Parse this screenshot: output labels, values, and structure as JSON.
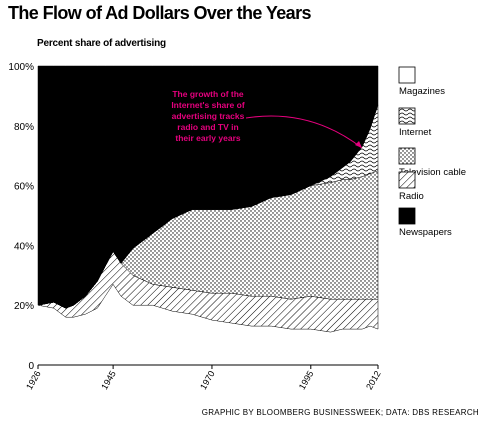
{
  "title": "The Flow of Ad Dollars Over the Years",
  "credit": "GRAPHIC BY BLOOMBERG BUSINESSWEEK; DATA: DBS RESEARCH",
  "chart_data": {
    "type": "area",
    "stacked": true,
    "title": "The Flow of Ad Dollars Over the Years",
    "ylabel": "Percent share of advertising",
    "xlabel": "",
    "ylim": [
      0,
      100
    ],
    "yticks": [
      "0",
      "20%",
      "40%",
      "60%",
      "80%",
      "100%"
    ],
    "xticks": [
      "1926",
      "1945",
      "1970",
      "1995",
      "2012"
    ],
    "grid": false,
    "legend_position": "right",
    "annotation": "The growth of the Internet's share of advertising tracks radio and TV in their early years",
    "colors": {
      "annotation": "#e6007e",
      "newspapers": "#000000"
    },
    "series": [
      {
        "name": "Magazines",
        "pattern": "white",
        "points": [
          [
            1926,
            20
          ],
          [
            1930,
            19
          ],
          [
            1933,
            16
          ],
          [
            1935,
            16
          ],
          [
            1938,
            17
          ],
          [
            1941,
            19
          ],
          [
            1943,
            23
          ],
          [
            1945,
            27
          ],
          [
            1947,
            23
          ],
          [
            1950,
            20
          ],
          [
            1955,
            20
          ],
          [
            1960,
            18
          ],
          [
            1965,
            17
          ],
          [
            1970,
            15
          ],
          [
            1975,
            14
          ],
          [
            1980,
            13
          ],
          [
            1985,
            13
          ],
          [
            1990,
            12
          ],
          [
            1995,
            12
          ],
          [
            2000,
            11
          ],
          [
            2003,
            12
          ],
          [
            2005,
            12
          ],
          [
            2008,
            12
          ],
          [
            2010,
            13
          ],
          [
            2012,
            12
          ]
        ]
      },
      {
        "name": "Radio",
        "pattern": "diagonal",
        "points": [
          [
            1926,
            0
          ],
          [
            1930,
            2
          ],
          [
            1933,
            3
          ],
          [
            1935,
            4
          ],
          [
            1938,
            6
          ],
          [
            1941,
            9
          ],
          [
            1943,
            10
          ],
          [
            1945,
            11
          ],
          [
            1947,
            11
          ],
          [
            1950,
            10
          ],
          [
            1955,
            7
          ],
          [
            1960,
            8
          ],
          [
            1965,
            8
          ],
          [
            1970,
            9
          ],
          [
            1975,
            10
          ],
          [
            1980,
            10
          ],
          [
            1985,
            10
          ],
          [
            1990,
            10
          ],
          [
            1995,
            11
          ],
          [
            2000,
            11
          ],
          [
            2003,
            10
          ],
          [
            2005,
            10
          ],
          [
            2008,
            10
          ],
          [
            2010,
            9
          ],
          [
            2012,
            10
          ]
        ]
      },
      {
        "name": "Television cable",
        "pattern": "dots",
        "points": [
          [
            1926,
            0
          ],
          [
            1930,
            0
          ],
          [
            1933,
            0
          ],
          [
            1935,
            0
          ],
          [
            1938,
            0
          ],
          [
            1941,
            0
          ],
          [
            1943,
            0
          ],
          [
            1945,
            0
          ],
          [
            1947,
            0
          ],
          [
            1950,
            9
          ],
          [
            1955,
            17
          ],
          [
            1960,
            23
          ],
          [
            1965,
            27
          ],
          [
            1970,
            28
          ],
          [
            1975,
            28
          ],
          [
            1980,
            30
          ],
          [
            1985,
            33
          ],
          [
            1990,
            35
          ],
          [
            1995,
            37
          ],
          [
            2000,
            39
          ],
          [
            2003,
            40
          ],
          [
            2005,
            40
          ],
          [
            2008,
            41
          ],
          [
            2010,
            42
          ],
          [
            2012,
            43
          ]
        ]
      },
      {
        "name": "Internet",
        "pattern": "wavy",
        "points": [
          [
            1926,
            0
          ],
          [
            1930,
            0
          ],
          [
            1933,
            0
          ],
          [
            1935,
            0
          ],
          [
            1938,
            0
          ],
          [
            1941,
            0
          ],
          [
            1943,
            0
          ],
          [
            1945,
            0
          ],
          [
            1947,
            0
          ],
          [
            1950,
            0
          ],
          [
            1955,
            0
          ],
          [
            1960,
            0
          ],
          [
            1965,
            0
          ],
          [
            1970,
            0
          ],
          [
            1975,
            0
          ],
          [
            1980,
            0
          ],
          [
            1985,
            0
          ],
          [
            1990,
            0
          ],
          [
            1995,
            0
          ],
          [
            2000,
            2
          ],
          [
            2003,
            4
          ],
          [
            2005,
            6
          ],
          [
            2008,
            10
          ],
          [
            2010,
            15
          ],
          [
            2012,
            22
          ]
        ]
      },
      {
        "name": "Newspapers",
        "pattern": "black",
        "points": [
          [
            1926,
            80
          ],
          [
            1930,
            79
          ],
          [
            1933,
            81
          ],
          [
            1935,
            80
          ],
          [
            1938,
            77
          ],
          [
            1941,
            72
          ],
          [
            1943,
            67
          ],
          [
            1945,
            62
          ],
          [
            1947,
            66
          ],
          [
            1950,
            61
          ],
          [
            1955,
            56
          ],
          [
            1960,
            51
          ],
          [
            1965,
            48
          ],
          [
            1970,
            48
          ],
          [
            1975,
            48
          ],
          [
            1980,
            47
          ],
          [
            1985,
            44
          ],
          [
            1990,
            43
          ],
          [
            1995,
            40
          ],
          [
            2000,
            37
          ],
          [
            2003,
            34
          ],
          [
            2005,
            32
          ],
          [
            2008,
            27
          ],
          [
            2010,
            21
          ],
          [
            2012,
            13
          ]
        ]
      }
    ],
    "legend": [
      "Magazines",
      "Internet",
      "Television cable",
      "Radio",
      "Newspapers"
    ]
  }
}
